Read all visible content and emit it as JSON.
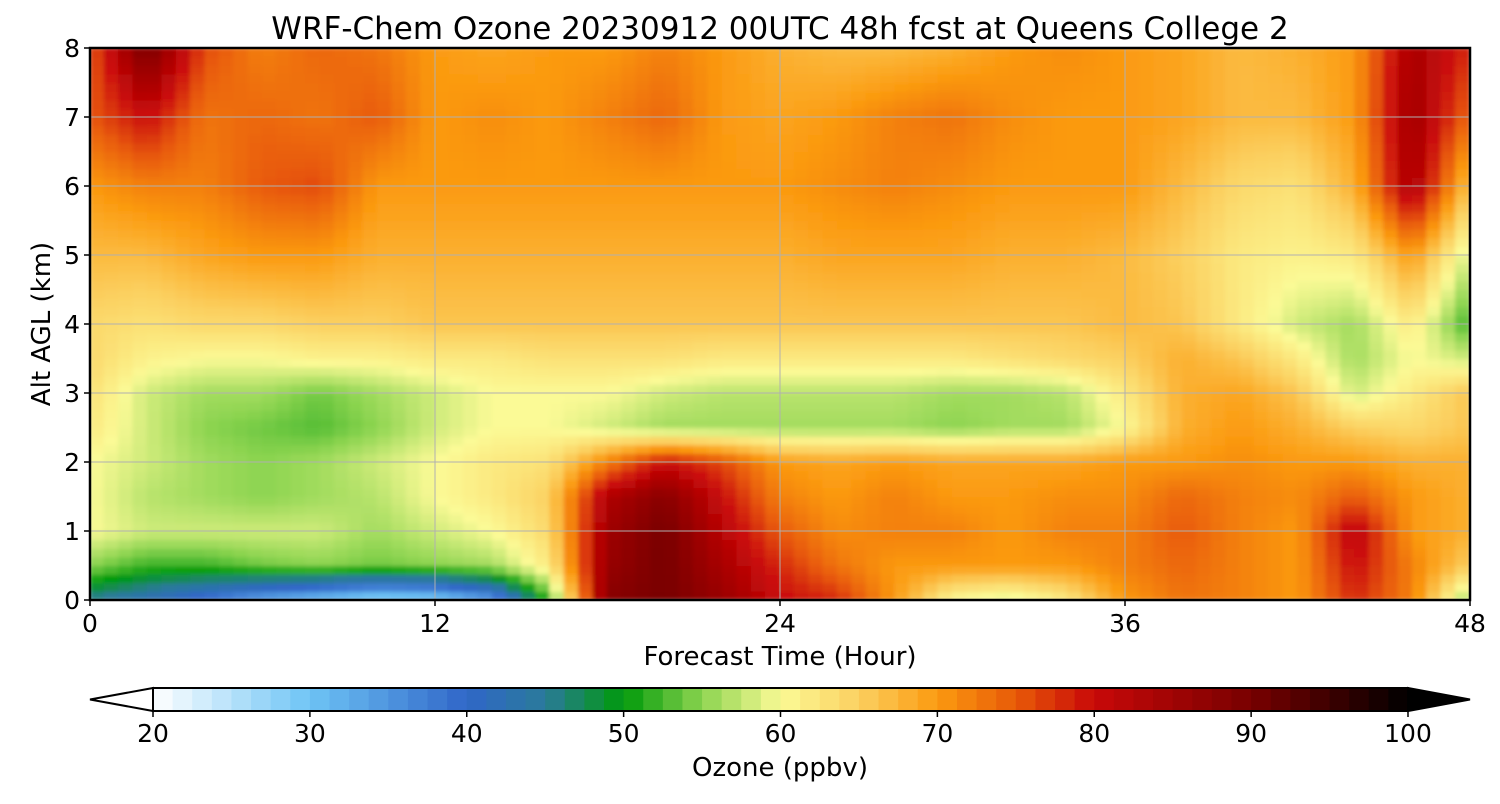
{
  "chart_data": {
    "type": "heatmap",
    "title": "WRF-Chem Ozone  20230912 00UTC 48h fcst at Queens College 2",
    "xlabel": "Forecast Time (Hour)",
    "ylabel": "Alt AGL (km)",
    "xlim": [
      0,
      48
    ],
    "ylim": [
      0,
      8
    ],
    "xticks": [
      0,
      12,
      24,
      36,
      48
    ],
    "yticks": [
      0,
      1,
      2,
      3,
      4,
      5,
      6,
      7,
      8
    ],
    "grid": true,
    "x": [
      0,
      2,
      4,
      6,
      8,
      10,
      12,
      14,
      16,
      18,
      20,
      22,
      24,
      26,
      28,
      30,
      32,
      34,
      36,
      38,
      40,
      42,
      44,
      46,
      48
    ],
    "y": [
      0,
      0.5,
      1,
      1.5,
      2,
      2.5,
      3,
      3.5,
      4,
      5,
      6,
      7,
      8
    ],
    "z": [
      [
        45,
        42,
        38,
        33,
        30,
        27,
        28,
        34,
        52,
        88,
        90,
        86,
        80,
        78,
        70,
        60,
        58,
        62,
        70,
        73,
        72,
        70,
        78,
        72,
        55
      ],
      [
        55,
        52,
        52,
        54,
        55,
        54,
        55,
        56,
        62,
        86,
        90,
        84,
        78,
        73,
        70,
        70,
        70,
        70,
        72,
        74,
        72,
        70,
        80,
        72,
        65
      ],
      [
        60,
        58,
        58,
        58,
        58,
        56,
        58,
        60,
        64,
        85,
        90,
        82,
        75,
        71,
        72,
        72,
        70,
        72,
        72,
        75,
        72,
        70,
        82,
        70,
        68
      ],
      [
        60,
        57,
        56,
        55,
        56,
        57,
        60,
        62,
        65,
        83,
        88,
        80,
        72,
        70,
        72,
        70,
        70,
        71,
        71,
        74,
        72,
        71,
        75,
        70,
        68
      ],
      [
        60,
        58,
        56,
        55,
        56,
        58,
        60,
        62,
        63,
        72,
        80,
        76,
        70,
        69,
        70,
        69,
        69,
        69,
        70,
        70,
        71,
        70,
        70,
        68,
        68
      ],
      [
        62,
        58,
        55,
        54,
        53,
        55,
        58,
        60,
        60,
        58,
        56,
        56,
        56,
        56,
        56,
        55,
        56,
        56,
        60,
        68,
        70,
        68,
        65,
        64,
        66
      ],
      [
        63,
        58,
        56,
        56,
        54,
        56,
        58,
        60,
        60,
        60,
        58,
        57,
        57,
        57,
        57,
        56,
        56,
        57,
        62,
        68,
        69,
        66,
        58,
        62,
        66
      ],
      [
        64,
        61,
        60,
        60,
        61,
        61,
        62,
        62,
        63,
        63,
        63,
        62,
        62,
        62,
        62,
        62,
        63,
        64,
        65,
        68,
        66,
        62,
        56,
        60,
        58
      ],
      [
        64,
        63,
        64,
        64,
        65,
        65,
        66,
        66,
        66,
        66,
        66,
        66,
        66,
        66,
        66,
        66,
        66,
        66,
        67,
        66,
        62,
        58,
        56,
        62,
        52
      ],
      [
        67,
        67,
        69,
        70,
        70,
        68,
        68,
        68,
        68,
        68,
        68,
        68,
        68,
        69,
        69,
        69,
        68,
        68,
        67,
        65,
        62,
        61,
        62,
        70,
        58
      ],
      [
        70,
        72,
        72,
        75,
        76,
        70,
        70,
        70,
        70,
        70,
        70,
        70,
        70,
        71,
        72,
        71,
        70,
        70,
        70,
        67,
        64,
        63,
        68,
        84,
        66
      ],
      [
        75,
        80,
        73,
        74,
        73,
        75,
        70,
        71,
        70,
        72,
        74,
        70,
        69,
        70,
        72,
        73,
        71,
        70,
        70,
        69,
        67,
        67,
        70,
        85,
        74
      ],
      [
        75,
        90,
        76,
        72,
        74,
        73,
        70,
        69,
        70,
        70,
        72,
        70,
        68,
        67,
        67,
        68,
        70,
        71,
        70,
        69,
        67,
        68,
        70,
        84,
        78
      ]
    ],
    "colorbar": {
      "label": "Ozone  (ppbv)",
      "min": 20,
      "max": 100,
      "ticks": [
        20,
        30,
        40,
        50,
        60,
        70,
        80,
        90,
        100
      ],
      "extend": "both",
      "stops": [
        {
          "v": 20,
          "c": "#ffffff"
        },
        {
          "v": 30,
          "c": "#6ec4f5"
        },
        {
          "v": 40,
          "c": "#3066c8"
        },
        {
          "v": 45,
          "c": "#2a7a9a"
        },
        {
          "v": 50,
          "c": "#009a0a"
        },
        {
          "v": 55,
          "c": "#8cd450"
        },
        {
          "v": 60,
          "c": "#fbfa96"
        },
        {
          "v": 65,
          "c": "#fbd060"
        },
        {
          "v": 70,
          "c": "#fb9a10"
        },
        {
          "v": 75,
          "c": "#e85a08"
        },
        {
          "v": 80,
          "c": "#c80808"
        },
        {
          "v": 90,
          "c": "#780000"
        },
        {
          "v": 100,
          "c": "#000000"
        }
      ]
    }
  }
}
